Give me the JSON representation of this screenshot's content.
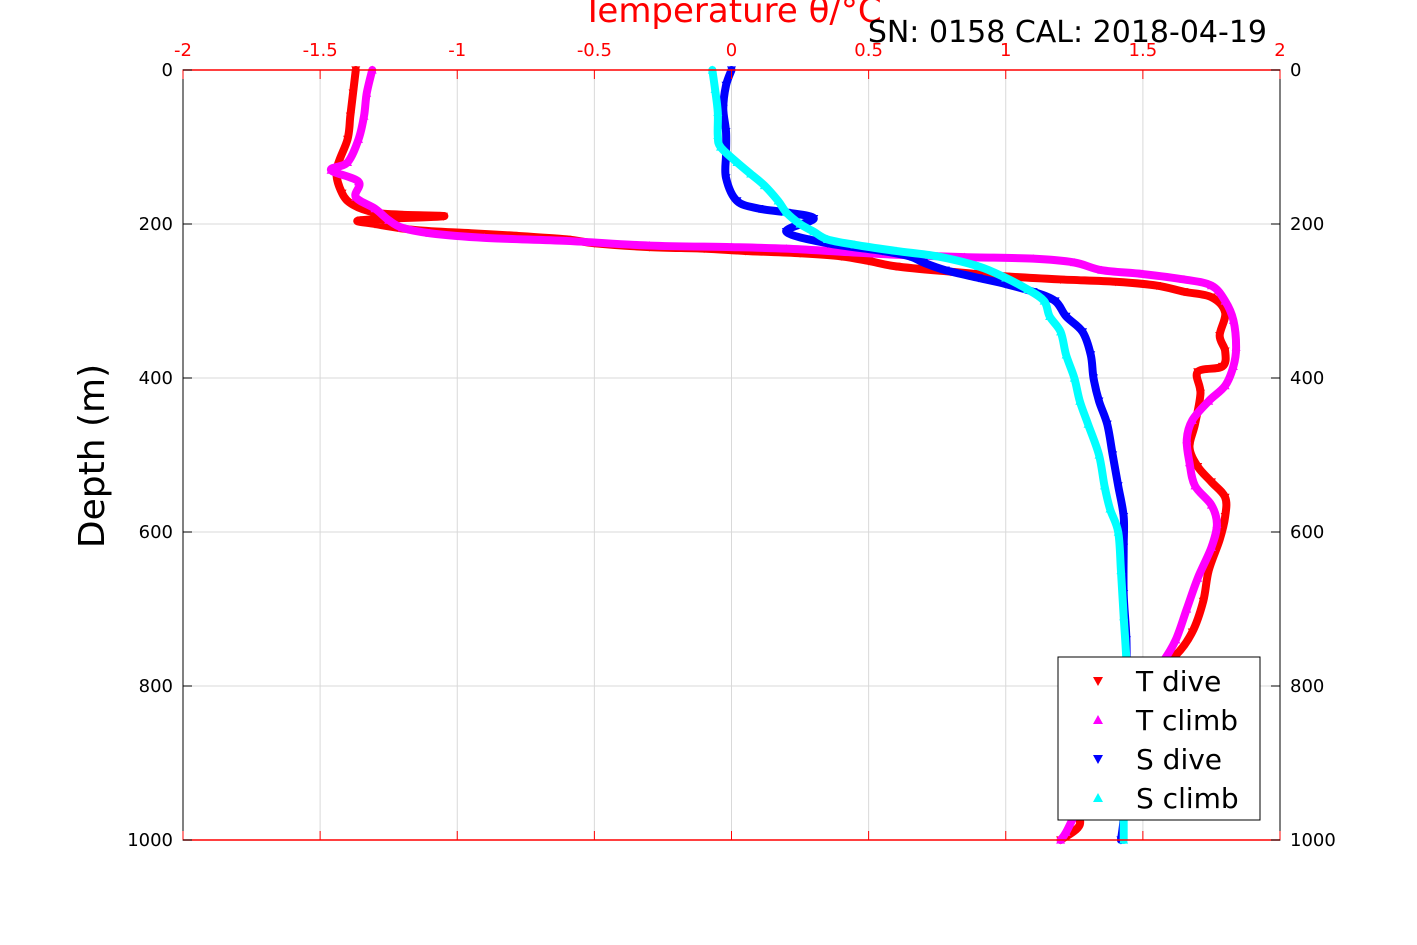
{
  "chart_data": {
    "type": "scatter",
    "title": "Temperature θ/°C",
    "annotation": "SN: 0158  CAL: 2018-04-19",
    "ylabel": "Depth (m)",
    "xlim": [
      -2,
      2
    ],
    "ylim": [
      0,
      1000
    ],
    "y_reversed": true,
    "x_axis_position": "top",
    "x_ticks": [
      -2,
      -1.5,
      -1,
      -0.5,
      0,
      0.5,
      1,
      1.5,
      2
    ],
    "y_ticks": [
      0,
      200,
      400,
      600,
      800,
      1000
    ],
    "grid": true,
    "legend_placement": "bottom-right",
    "colors": {
      "title": "#ff0000",
      "x_axis": "#ff0000"
    },
    "series": [
      {
        "name": "T dive",
        "color": "#ff0000",
        "marker": "triangle-down",
        "points": [
          [
            -1.37,
            0
          ],
          [
            -1.38,
            30
          ],
          [
            -1.39,
            60
          ],
          [
            -1.4,
            90
          ],
          [
            -1.44,
            130
          ],
          [
            -1.42,
            160
          ],
          [
            -1.38,
            175
          ],
          [
            -1.3,
            185
          ],
          [
            -1.2,
            188
          ],
          [
            -1.05,
            190
          ],
          [
            -1.35,
            195
          ],
          [
            -1.3,
            200
          ],
          [
            -1.15,
            208
          ],
          [
            -0.95,
            212
          ],
          [
            -0.8,
            215
          ],
          [
            -0.6,
            220
          ],
          [
            -0.5,
            225
          ],
          [
            -0.3,
            230
          ],
          [
            -0.1,
            232
          ],
          [
            0.05,
            235
          ],
          [
            0.25,
            238
          ],
          [
            0.4,
            242
          ],
          [
            0.5,
            248
          ],
          [
            0.6,
            255
          ],
          [
            0.8,
            262
          ],
          [
            1.0,
            268
          ],
          [
            1.2,
            272
          ],
          [
            1.4,
            275
          ],
          [
            1.55,
            280
          ],
          [
            1.65,
            288
          ],
          [
            1.75,
            295
          ],
          [
            1.8,
            315
          ],
          [
            1.78,
            345
          ],
          [
            1.8,
            365
          ],
          [
            1.79,
            385
          ],
          [
            1.7,
            392
          ],
          [
            1.71,
            420
          ],
          [
            1.69,
            460
          ],
          [
            1.67,
            490
          ],
          [
            1.7,
            515
          ],
          [
            1.75,
            535
          ],
          [
            1.8,
            555
          ],
          [
            1.8,
            580
          ],
          [
            1.78,
            610
          ],
          [
            1.74,
            650
          ],
          [
            1.72,
            690
          ],
          [
            1.68,
            730
          ],
          [
            1.62,
            760
          ],
          [
            1.54,
            780
          ],
          [
            1.45,
            810
          ],
          [
            1.38,
            860
          ],
          [
            1.3,
            910
          ],
          [
            1.25,
            950
          ],
          [
            1.27,
            980
          ],
          [
            1.2,
            1000
          ]
        ]
      },
      {
        "name": "T climb",
        "color": "#ff00ff",
        "marker": "triangle-up",
        "points": [
          [
            -1.31,
            0
          ],
          [
            -1.33,
            30
          ],
          [
            -1.34,
            60
          ],
          [
            -1.36,
            90
          ],
          [
            -1.4,
            120
          ],
          [
            -1.46,
            130
          ],
          [
            -1.36,
            145
          ],
          [
            -1.37,
            165
          ],
          [
            -1.3,
            180
          ],
          [
            -1.25,
            195
          ],
          [
            -1.2,
            205
          ],
          [
            -1.1,
            212
          ],
          [
            -0.9,
            218
          ],
          [
            -0.6,
            222
          ],
          [
            -0.3,
            228
          ],
          [
            0.0,
            230
          ],
          [
            0.2,
            232
          ],
          [
            0.4,
            236
          ],
          [
            0.6,
            240
          ],
          [
            0.85,
            243
          ],
          [
            1.1,
            245
          ],
          [
            1.25,
            250
          ],
          [
            1.35,
            260
          ],
          [
            1.5,
            265
          ],
          [
            1.65,
            272
          ],
          [
            1.75,
            280
          ],
          [
            1.8,
            300
          ],
          [
            1.83,
            325
          ],
          [
            1.84,
            360
          ],
          [
            1.83,
            385
          ],
          [
            1.8,
            410
          ],
          [
            1.74,
            430
          ],
          [
            1.68,
            455
          ],
          [
            1.66,
            480
          ],
          [
            1.67,
            510
          ],
          [
            1.69,
            540
          ],
          [
            1.75,
            565
          ],
          [
            1.77,
            590
          ],
          [
            1.75,
            620
          ],
          [
            1.7,
            660
          ],
          [
            1.66,
            700
          ],
          [
            1.62,
            740
          ],
          [
            1.57,
            770
          ],
          [
            1.48,
            810
          ],
          [
            1.4,
            860
          ],
          [
            1.32,
            910
          ],
          [
            1.26,
            960
          ],
          [
            1.22,
            990
          ],
          [
            1.2,
            1000
          ]
        ]
      },
      {
        "name": "S dive",
        "color": "#0000ff",
        "marker": "triangle-down",
        "points": [
          [
            0.0,
            0
          ],
          [
            -0.02,
            20
          ],
          [
            -0.03,
            50
          ],
          [
            -0.02,
            80
          ],
          [
            -0.02,
            110
          ],
          [
            -0.02,
            140
          ],
          [
            0.02,
            170
          ],
          [
            0.1,
            180
          ],
          [
            0.2,
            185
          ],
          [
            0.3,
            193
          ],
          [
            0.2,
            210
          ],
          [
            0.35,
            225
          ],
          [
            0.55,
            235
          ],
          [
            0.65,
            242
          ],
          [
            0.7,
            250
          ],
          [
            0.78,
            260
          ],
          [
            0.9,
            270
          ],
          [
            1.0,
            278
          ],
          [
            1.1,
            288
          ],
          [
            1.18,
            300
          ],
          [
            1.22,
            320
          ],
          [
            1.28,
            340
          ],
          [
            1.31,
            370
          ],
          [
            1.32,
            400
          ],
          [
            1.34,
            430
          ],
          [
            1.37,
            460
          ],
          [
            1.39,
            500
          ],
          [
            1.41,
            540
          ],
          [
            1.43,
            580
          ],
          [
            1.43,
            620
          ],
          [
            1.43,
            680
          ],
          [
            1.44,
            740
          ],
          [
            1.44,
            800
          ],
          [
            1.44,
            860
          ],
          [
            1.43,
            920
          ],
          [
            1.43,
            970
          ],
          [
            1.42,
            1000
          ]
        ]
      },
      {
        "name": "S climb",
        "color": "#00ffff",
        "marker": "triangle-up",
        "points": [
          [
            -0.07,
            0
          ],
          [
            -0.06,
            25
          ],
          [
            -0.05,
            55
          ],
          [
            -0.05,
            85
          ],
          [
            -0.04,
            100
          ],
          [
            0.02,
            120
          ],
          [
            0.07,
            135
          ],
          [
            0.12,
            150
          ],
          [
            0.17,
            170
          ],
          [
            0.2,
            185
          ],
          [
            0.25,
            200
          ],
          [
            0.3,
            210
          ],
          [
            0.35,
            220
          ],
          [
            0.45,
            227
          ],
          [
            0.6,
            235
          ],
          [
            0.75,
            242
          ],
          [
            0.9,
            255
          ],
          [
            1.0,
            270
          ],
          [
            1.08,
            285
          ],
          [
            1.14,
            300
          ],
          [
            1.16,
            320
          ],
          [
            1.2,
            340
          ],
          [
            1.22,
            370
          ],
          [
            1.25,
            400
          ],
          [
            1.27,
            430
          ],
          [
            1.3,
            460
          ],
          [
            1.34,
            500
          ],
          [
            1.36,
            540
          ],
          [
            1.38,
            570
          ],
          [
            1.41,
            600
          ],
          [
            1.42,
            650
          ],
          [
            1.43,
            710
          ],
          [
            1.44,
            770
          ],
          [
            1.44,
            830
          ],
          [
            1.43,
            890
          ],
          [
            1.43,
            950
          ],
          [
            1.43,
            1000
          ]
        ]
      }
    ]
  }
}
